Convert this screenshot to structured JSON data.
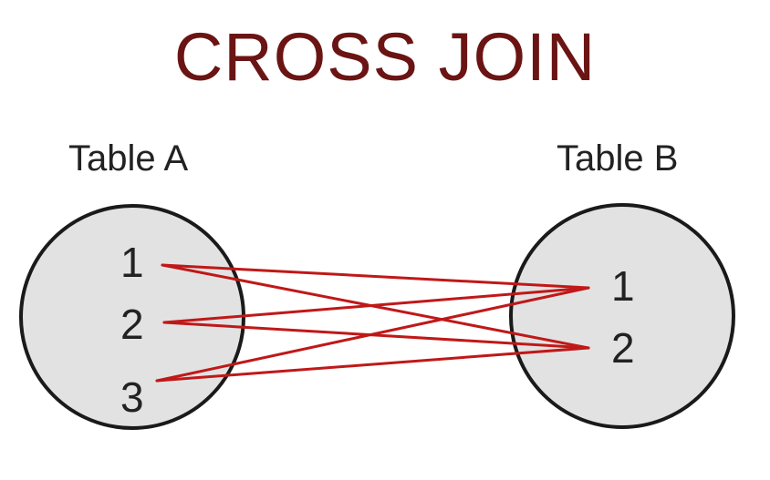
{
  "title": "CROSS JOIN",
  "table_a": {
    "label": "Table A",
    "rows": [
      "1",
      "2",
      "3"
    ]
  },
  "table_b": {
    "label": "Table B",
    "rows": [
      "1",
      "2"
    ]
  },
  "colors": {
    "title": "#6b1414",
    "connector": "#c01818",
    "circle_fill": "#e2e2e2",
    "circle_stroke": "#1a1a1a"
  }
}
